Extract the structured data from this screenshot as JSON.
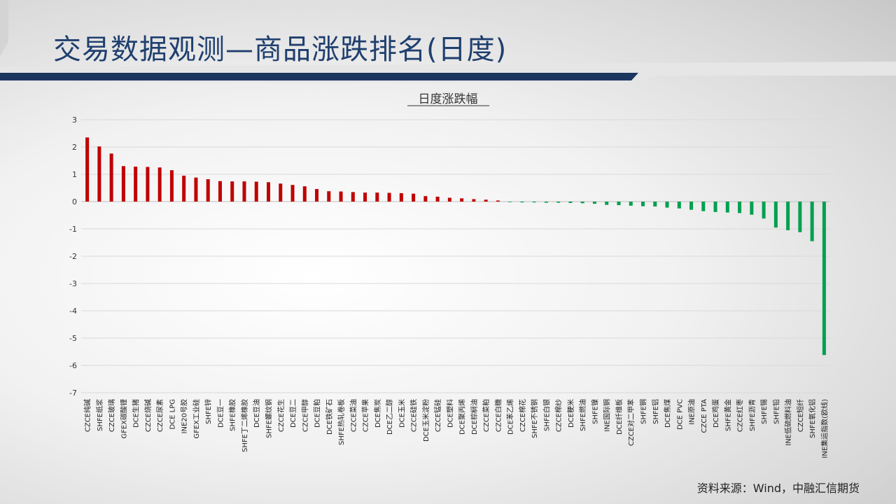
{
  "page": {
    "title": "交易数据观测—商品涨跌排名(日度)",
    "source": "资料来源：Wind，中融汇信期货"
  },
  "colors": {
    "title_text": "#1f3f6e",
    "band_navy": "#1c3660",
    "up_bar": "#c00000",
    "down_bar": "#00a050",
    "gridline": "#d9d9d9"
  },
  "chart_data": {
    "type": "bar",
    "title": "日度涨跌幅",
    "ylim": [
      -7,
      3
    ],
    "yticks": [
      3,
      2,
      1,
      0,
      -1,
      -2,
      -3,
      -4,
      -5,
      -6,
      -7
    ],
    "grid": true,
    "categories": [
      "CZCE纯碱",
      "SHFE纸浆",
      "CZCE玻璃",
      "GFEX碳酸锂",
      "DCE生猪",
      "CZCE烧碱",
      "CZCE尿素",
      "DCE LPG",
      "INE20号胶",
      "GFEX工业硅",
      "SHFE锌",
      "DCE豆一",
      "SHFE橡胶",
      "SHFE丁二烯橡胶",
      "DCE豆油",
      "SHFE螺纹钢",
      "CZCE花生",
      "DCE豆二",
      "CZCE甲醇",
      "DCE豆粕",
      "DCE铁矿石",
      "SHFE热轧卷板",
      "CZCE菜油",
      "CZCE苹果",
      "DCE焦炭",
      "DCE乙二醇",
      "DCE玉米",
      "CZCE硅铁",
      "DCE玉米淀粉",
      "CZCE锰硅",
      "DCE塑料",
      "DCE聚丙烯",
      "DCE棕榈油",
      "CZCE菜粕",
      "CZCE白糖",
      "DCE苯乙烯",
      "CZCE棉花",
      "SHFE不锈钢",
      "SHFE白银",
      "CZCE棉纱",
      "DCE粳米",
      "SHFE燃油",
      "SHFE镍",
      "INE国际铜",
      "DCE纤维板",
      "CZCE对二甲苯",
      "SHFE铜",
      "SHFE铝",
      "DCE焦煤",
      "DCE PVC",
      "INE原油",
      "CZCE PTA",
      "DCE鸡蛋",
      "SHFE黄金",
      "CZCE红枣",
      "SHFE沥青",
      "SHFE锡",
      "SHFE铅",
      "INE低硫燃料油",
      "CZCE短纤",
      "SHFE氧化铝",
      "INE集运指数(欧线)"
    ],
    "values": [
      2.35,
      2.02,
      1.76,
      1.3,
      1.28,
      1.27,
      1.25,
      1.15,
      0.95,
      0.88,
      0.82,
      0.75,
      0.74,
      0.74,
      0.73,
      0.71,
      0.66,
      0.61,
      0.56,
      0.46,
      0.38,
      0.37,
      0.35,
      0.33,
      0.33,
      0.32,
      0.31,
      0.29,
      0.2,
      0.18,
      0.14,
      0.12,
      0.09,
      0.07,
      0.04,
      -0.02,
      -0.03,
      -0.03,
      -0.04,
      -0.04,
      -0.05,
      -0.06,
      -0.08,
      -0.12,
      -0.13,
      -0.15,
      -0.17,
      -0.18,
      -0.22,
      -0.25,
      -0.3,
      -0.35,
      -0.38,
      -0.4,
      -0.42,
      -0.48,
      -0.62,
      -0.95,
      -1.05,
      -1.12,
      -1.45,
      -5.62
    ]
  }
}
